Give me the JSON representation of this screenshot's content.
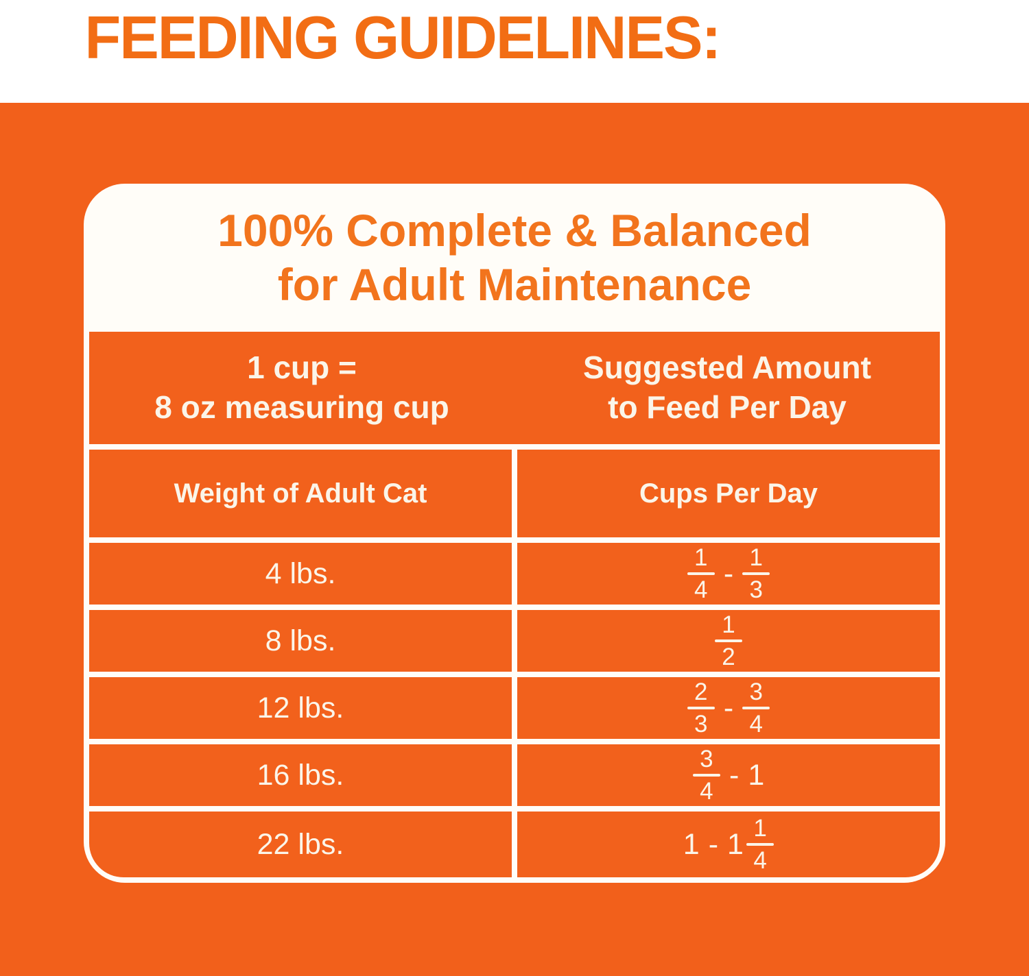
{
  "page": {
    "heading": "FEEDING GUIDELINES:"
  },
  "card": {
    "title_line1": "100% Complete & Balanced",
    "title_line2": "for Adult Maintenance",
    "table": {
      "header": {
        "measure_line1": "1 cup =",
        "measure_line2": "8 oz measuring cup",
        "amount_line1": "Suggested Amount",
        "amount_line2": "to Feed Per Day"
      },
      "subheader": {
        "left": "Weight of Adult Cat",
        "right": "Cups Per Day"
      },
      "rows": [
        {
          "weight": "4 lbs.",
          "amount": [
            {
              "t": "frac",
              "n": "1",
              "d": "4"
            },
            {
              "t": "text",
              "v": "-"
            },
            {
              "t": "frac",
              "n": "1",
              "d": "3"
            }
          ]
        },
        {
          "weight": "8 lbs.",
          "amount": [
            {
              "t": "frac",
              "n": "1",
              "d": "2"
            }
          ]
        },
        {
          "weight": "12 lbs.",
          "amount": [
            {
              "t": "frac",
              "n": "2",
              "d": "3"
            },
            {
              "t": "text",
              "v": "-"
            },
            {
              "t": "frac",
              "n": "3",
              "d": "4"
            }
          ]
        },
        {
          "weight": "16 lbs.",
          "amount": [
            {
              "t": "frac",
              "n": "3",
              "d": "4"
            },
            {
              "t": "text",
              "v": "-"
            },
            {
              "t": "text",
              "v": "1"
            }
          ]
        },
        {
          "weight": "22 lbs.",
          "amount": [
            {
              "t": "text",
              "v": "1"
            },
            {
              "t": "text",
              "v": "-"
            },
            {
              "t": "mixed",
              "w": "1",
              "n": "1",
              "d": "4"
            }
          ]
        }
      ]
    }
  },
  "colors": {
    "panel_orange": "#F2601B",
    "cell_orange": "#F2611C",
    "title_orange": "#F2741D",
    "heading_orange": "#F26D14",
    "text_light": "#FBF5E9",
    "card_bg": "#FFFDF8"
  }
}
